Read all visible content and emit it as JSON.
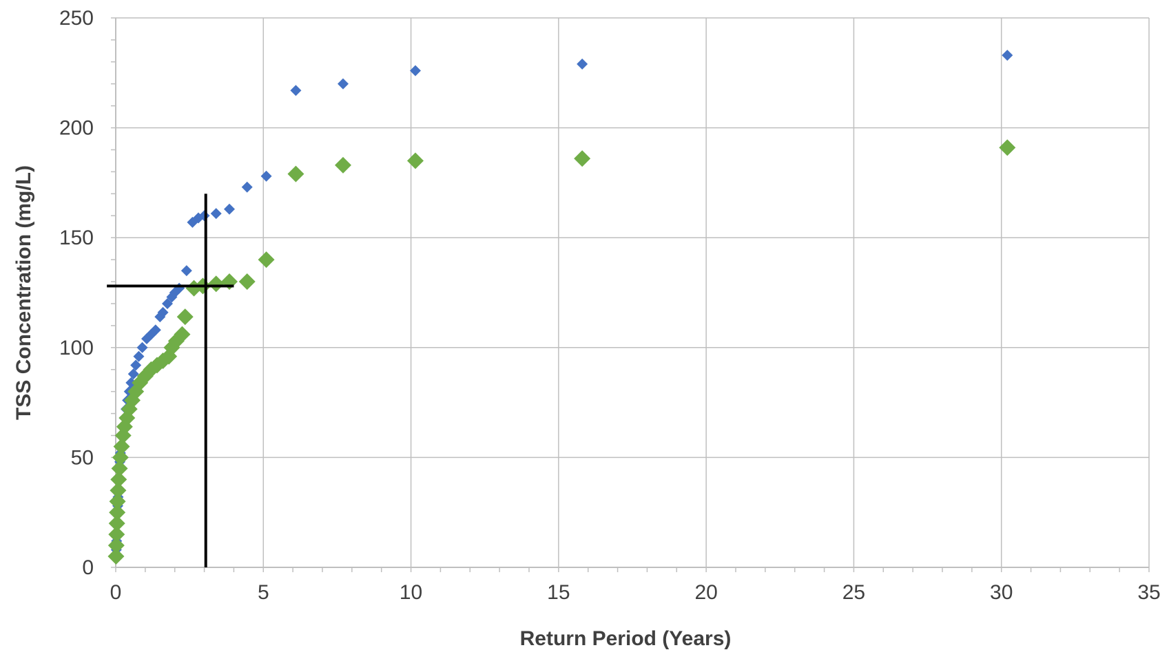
{
  "chart_data": {
    "type": "scatter",
    "title": "",
    "xlabel": "Return Period (Years)",
    "ylabel": "TSS Concentration (mg/L)",
    "xlim": [
      0,
      35
    ],
    "ylim": [
      0,
      250
    ],
    "x_ticks": [
      0,
      5,
      10,
      15,
      20,
      25,
      30,
      35
    ],
    "x_tick_labels": [
      "0",
      "5",
      "10",
      "15",
      "20",
      "25",
      "30",
      "35"
    ],
    "y_ticks": [
      0,
      50,
      100,
      150,
      200,
      250
    ],
    "y_tick_labels": [
      "0",
      "50",
      "100",
      "150",
      "200",
      "250"
    ],
    "grid": true,
    "legend": "none",
    "series": [
      {
        "color": "#4472c4",
        "marker": "diamond",
        "marker_size": "small",
        "points": [
          [
            0.02,
            8
          ],
          [
            0.03,
            12
          ],
          [
            0.04,
            16
          ],
          [
            0.05,
            20
          ],
          [
            0.06,
            24
          ],
          [
            0.07,
            28
          ],
          [
            0.08,
            32
          ],
          [
            0.09,
            36
          ],
          [
            0.1,
            40
          ],
          [
            0.12,
            44
          ],
          [
            0.14,
            48
          ],
          [
            0.16,
            52
          ],
          [
            0.19,
            56
          ],
          [
            0.22,
            60
          ],
          [
            0.26,
            64
          ],
          [
            0.3,
            68
          ],
          [
            0.35,
            72
          ],
          [
            0.4,
            76
          ],
          [
            0.46,
            80
          ],
          [
            0.52,
            84
          ],
          [
            0.6,
            88
          ],
          [
            0.68,
            92
          ],
          [
            0.78,
            96
          ],
          [
            0.9,
            100
          ],
          [
            1.05,
            104
          ],
          [
            1.2,
            106
          ],
          [
            1.35,
            108
          ],
          [
            1.5,
            114
          ],
          [
            1.6,
            116
          ],
          [
            1.75,
            120
          ],
          [
            1.9,
            123
          ],
          [
            2.0,
            125
          ],
          [
            2.15,
            127
          ],
          [
            2.4,
            135
          ],
          [
            2.6,
            157
          ],
          [
            2.8,
            159
          ],
          [
            3.0,
            160
          ],
          [
            3.4,
            161
          ],
          [
            3.85,
            163
          ],
          [
            4.45,
            173
          ],
          [
            5.1,
            178
          ],
          [
            6.1,
            217
          ],
          [
            7.7,
            220
          ],
          [
            10.15,
            226
          ],
          [
            15.8,
            229
          ],
          [
            30.2,
            233
          ]
        ]
      },
      {
        "color": "#70ad47",
        "marker": "diamond",
        "marker_size": "large",
        "points": [
          [
            0.01,
            5
          ],
          [
            0.02,
            10
          ],
          [
            0.03,
            15
          ],
          [
            0.04,
            20
          ],
          [
            0.05,
            25
          ],
          [
            0.06,
            30
          ],
          [
            0.08,
            35
          ],
          [
            0.1,
            40
          ],
          [
            0.13,
            45
          ],
          [
            0.16,
            50
          ],
          [
            0.2,
            55
          ],
          [
            0.25,
            60
          ],
          [
            0.3,
            64
          ],
          [
            0.38,
            68
          ],
          [
            0.46,
            72
          ],
          [
            0.56,
            76
          ],
          [
            0.68,
            80
          ],
          [
            0.82,
            84
          ],
          [
            1.0,
            87
          ],
          [
            1.2,
            90
          ],
          [
            1.4,
            92
          ],
          [
            1.6,
            94
          ],
          [
            1.8,
            96
          ],
          [
            1.9,
            100
          ],
          [
            2.05,
            103
          ],
          [
            2.25,
            106
          ],
          [
            2.35,
            114
          ],
          [
            2.65,
            127
          ],
          [
            2.95,
            128
          ],
          [
            3.4,
            129
          ],
          [
            3.85,
            130
          ],
          [
            4.45,
            130
          ],
          [
            5.1,
            140
          ],
          [
            6.1,
            179
          ],
          [
            7.7,
            183
          ],
          [
            10.15,
            185
          ],
          [
            15.8,
            186
          ],
          [
            30.2,
            191
          ]
        ]
      }
    ],
    "reference_lines": [
      {
        "orientation": "vertical",
        "x": 3.05,
        "y_from": 0,
        "y_to": 170,
        "color": "#000000"
      },
      {
        "orientation": "horizontal",
        "y": 128,
        "x_from": -0.3,
        "x_to": 4.0,
        "color": "#000000"
      }
    ]
  }
}
